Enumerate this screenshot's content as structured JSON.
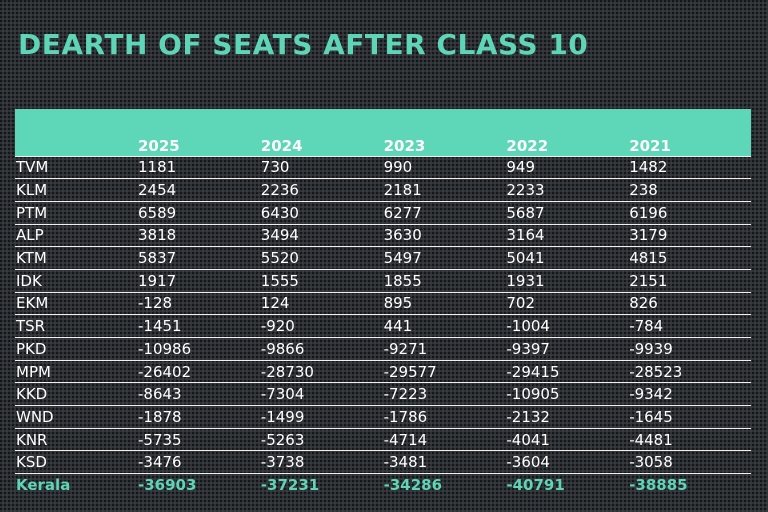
{
  "title": "DEARTH OF SEATS AFTER CLASS 10",
  "colors": {
    "accent": "#5dd5b6",
    "header_fill": "#5ed6b8",
    "background": "#2e3136",
    "text": "#ffffff"
  },
  "table": {
    "corner_label": "",
    "years": [
      "2025",
      "2024",
      "2023",
      "2022",
      "2021"
    ],
    "rows": [
      {
        "district": "TVM",
        "values": [
          "1181",
          "730",
          "990",
          "949",
          "1482"
        ]
      },
      {
        "district": "KLM",
        "values": [
          "2454",
          "2236",
          "2181",
          "2233",
          "238"
        ]
      },
      {
        "district": "PTM",
        "values": [
          "6589",
          "6430",
          "6277",
          "5687",
          "6196"
        ]
      },
      {
        "district": "ALP",
        "values": [
          "3818",
          "3494",
          "3630",
          "3164",
          "3179"
        ]
      },
      {
        "district": "KTM",
        "values": [
          "5837",
          "5520",
          "5497",
          "5041",
          "4815"
        ]
      },
      {
        "district": "IDK",
        "values": [
          "1917",
          "1555",
          "1855",
          "1931",
          "2151"
        ]
      },
      {
        "district": "EKM",
        "values": [
          "-128",
          "124",
          "895",
          "702",
          "826"
        ]
      },
      {
        "district": "TSR",
        "values": [
          "-1451",
          "-920",
          "441",
          "-1004",
          "-784"
        ]
      },
      {
        "district": "PKD",
        "values": [
          "-10986",
          "-9866",
          "-9271",
          "-9397",
          "-9939"
        ]
      },
      {
        "district": "MPM",
        "values": [
          "-26402",
          "-28730",
          "-29577",
          "-29415",
          "-28523"
        ]
      },
      {
        "district": "KKD",
        "values": [
          "-8643",
          "-7304",
          "-7223",
          "-10905",
          "-9342"
        ]
      },
      {
        "district": "WND",
        "values": [
          "-1878",
          "-1499",
          "-1786",
          "-2132",
          "-1645"
        ]
      },
      {
        "district": "KNR",
        "values": [
          "-5735",
          "-5263",
          "-4714",
          "-4041",
          "-4481"
        ]
      },
      {
        "district": "KSD",
        "values": [
          "-3476",
          "-3738",
          "-3481",
          "-3604",
          "-3058"
        ]
      }
    ],
    "total": {
      "district": "Kerala",
      "values": [
        "-36903",
        "-37231",
        "-34286",
        "-40791",
        "-38885"
      ]
    }
  }
}
